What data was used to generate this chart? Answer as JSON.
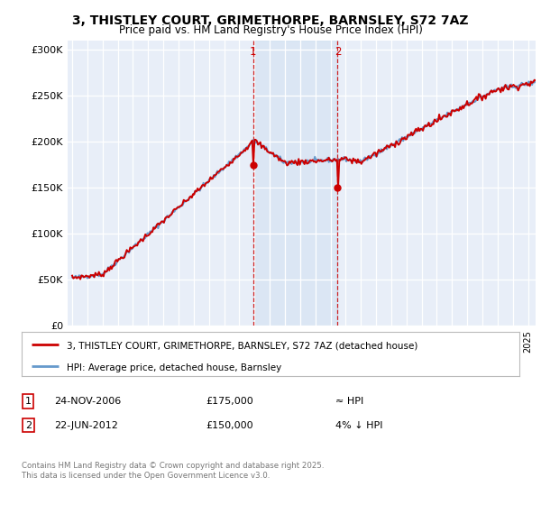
{
  "title": "3, THISTLEY COURT, GRIMETHORPE, BARNSLEY, S72 7AZ",
  "subtitle": "Price paid vs. HM Land Registry's House Price Index (HPI)",
  "background_color": "#ffffff",
  "plot_bg_color": "#e8eef8",
  "grid_color": "#ffffff",
  "legend_line1": "3, THISTLEY COURT, GRIMETHORPE, BARNSLEY, S72 7AZ (detached house)",
  "legend_line2": "HPI: Average price, detached house, Barnsley",
  "annotation1": {
    "label": "1",
    "date_str": "24-NOV-2006",
    "price_str": "£175,000",
    "note": "≈ HPI"
  },
  "annotation2": {
    "label": "2",
    "date_str": "22-JUN-2012",
    "price_str": "£150,000",
    "note": "4% ↓ HPI"
  },
  "copyright": "Contains HM Land Registry data © Crown copyright and database right 2025.\nThis data is licensed under the Open Government Licence v3.0.",
  "hpi_color": "#6699cc",
  "price_color": "#cc0000",
  "shade_color": "#ccddf0",
  "annotation_line_color": "#cc0000",
  "ylim": [
    0,
    310000
  ],
  "yticks": [
    0,
    50000,
    100000,
    150000,
    200000,
    250000,
    300000
  ],
  "ytick_labels": [
    "£0",
    "£50K",
    "£100K",
    "£150K",
    "£200K",
    "£250K",
    "£300K"
  ],
  "sale1_year": 2006.9,
  "sale1_price": 175000,
  "sale2_year": 2012.47,
  "sale2_price": 150000
}
